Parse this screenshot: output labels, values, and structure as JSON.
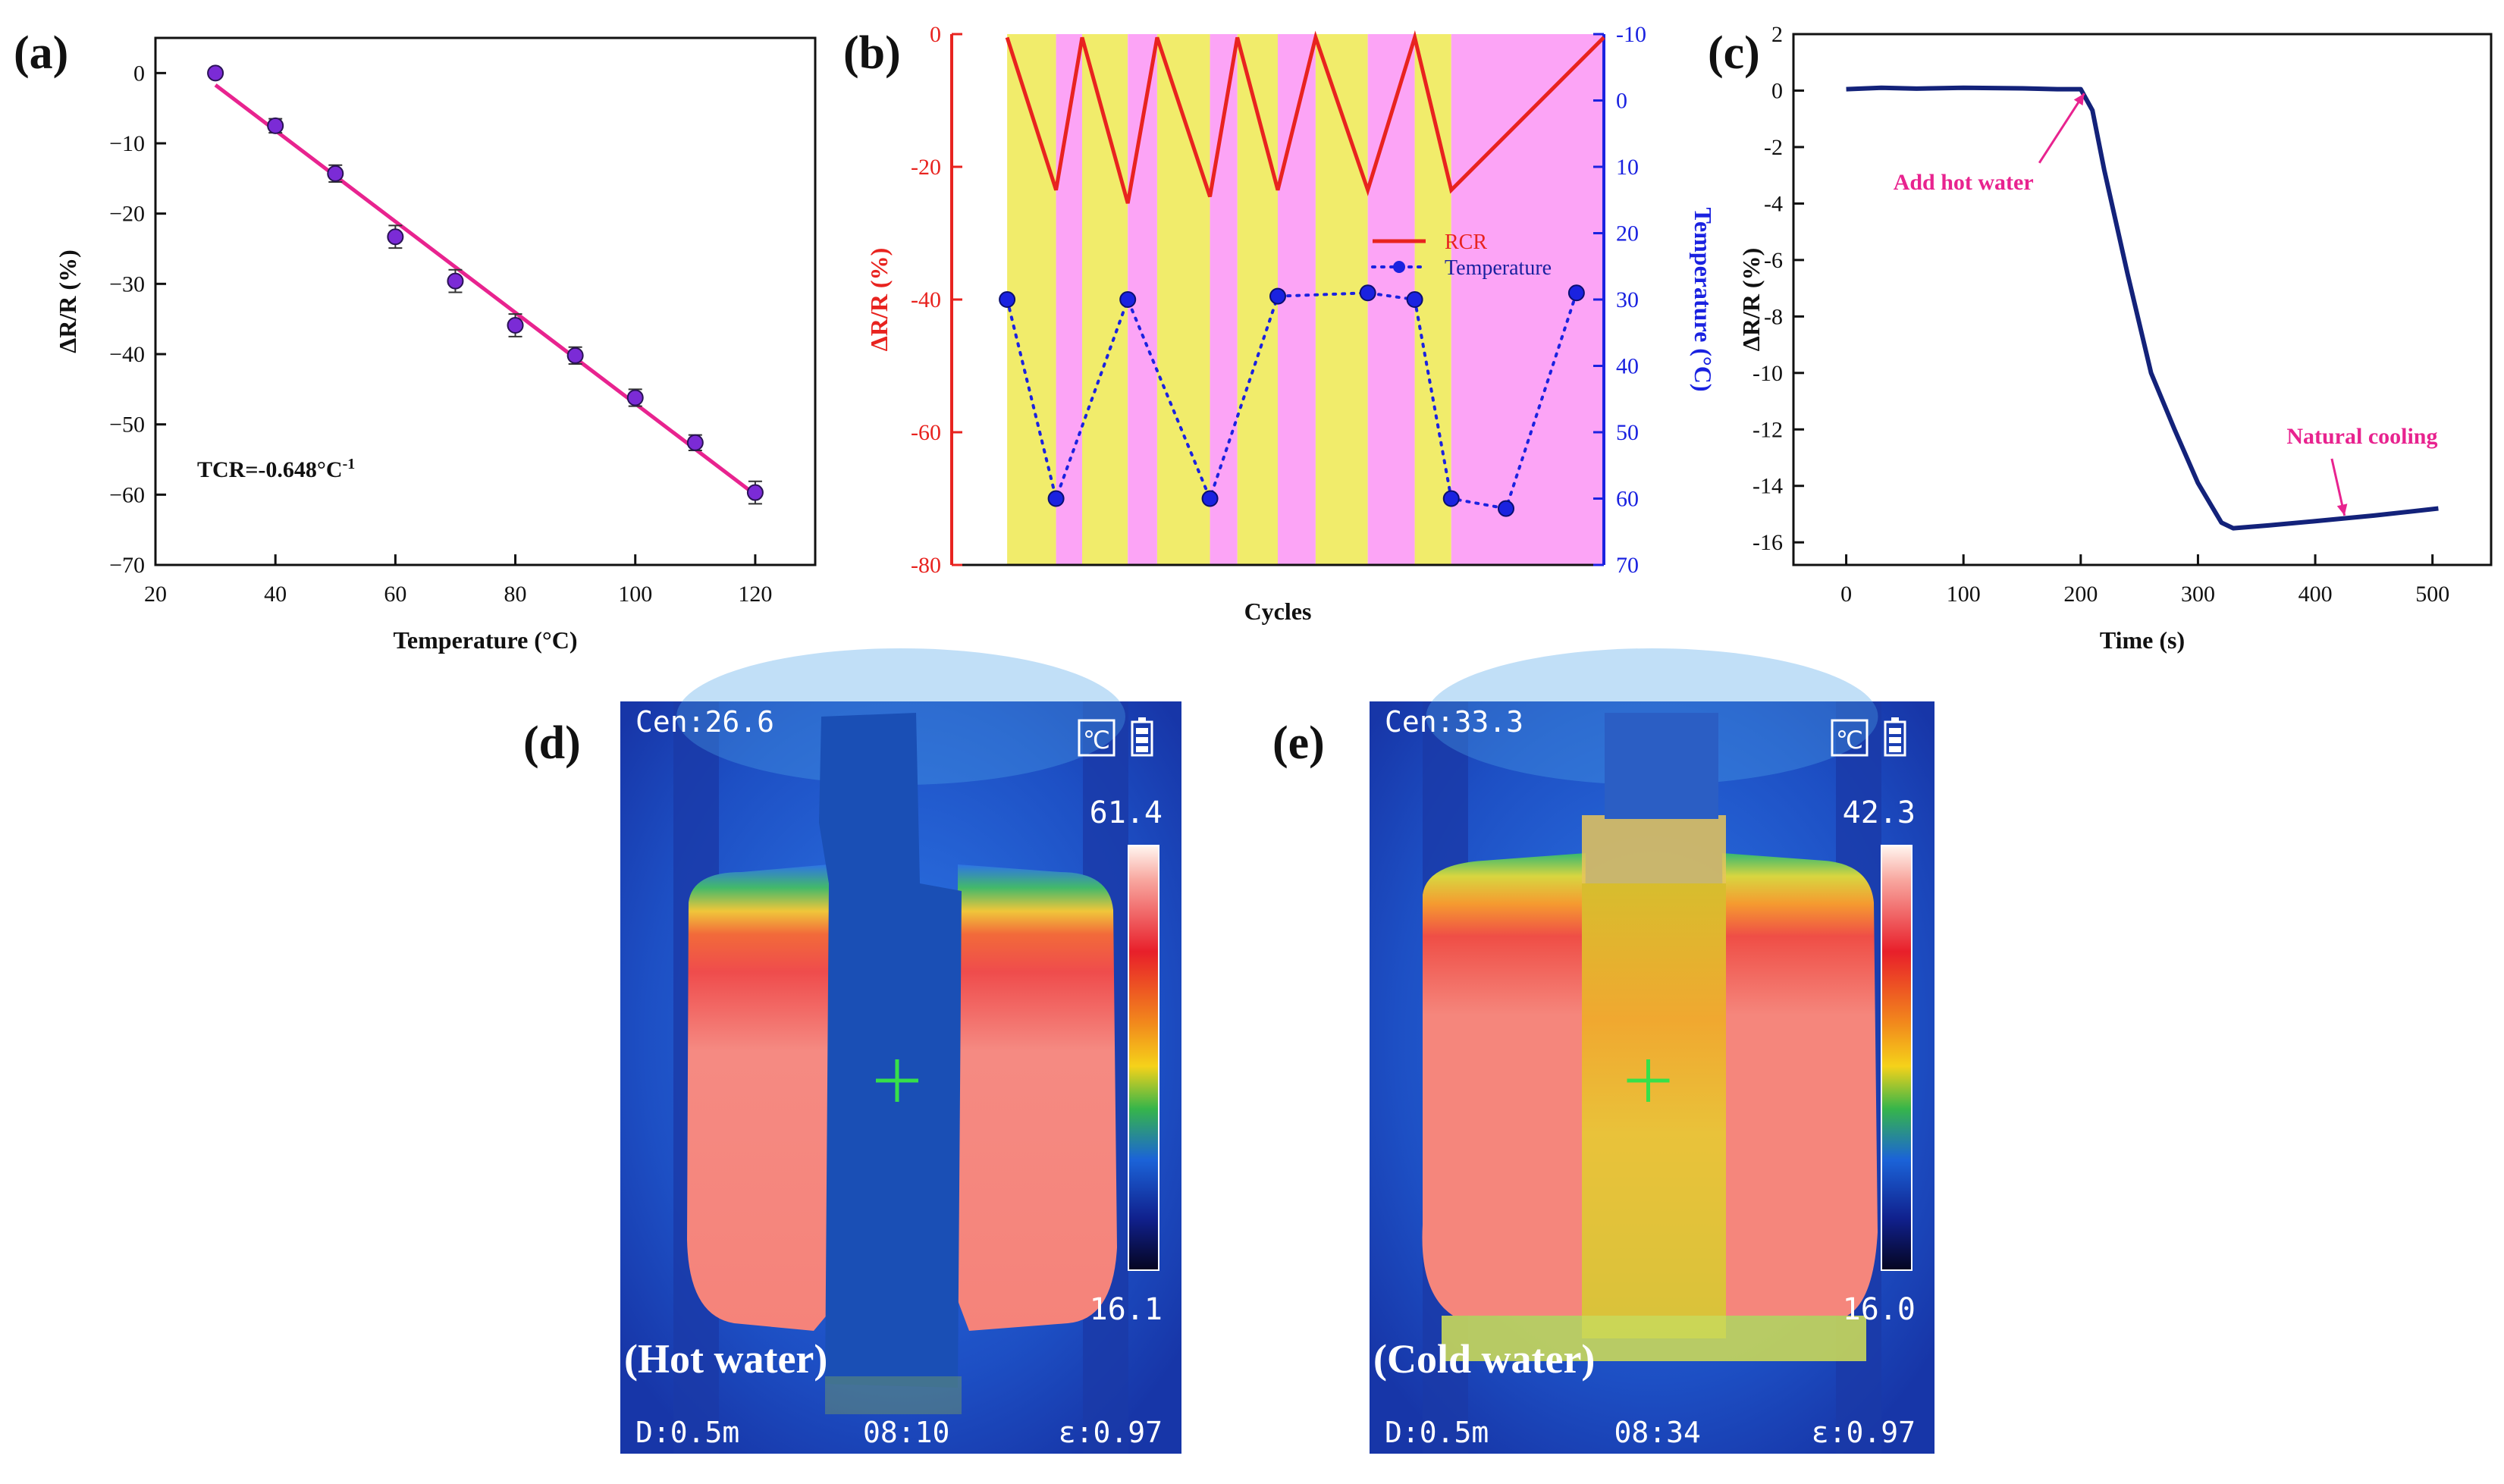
{
  "panels": {
    "a": "(a)",
    "b": "(b)",
    "c": "(c)",
    "d": "(d)",
    "e": "(e)"
  },
  "chart_data": [
    {
      "id": "a",
      "type": "scatter",
      "xlabel": "Temperature (°C)",
      "ylabel": "ΔR/R (%)",
      "xlim": [
        20,
        130
      ],
      "ylim": [
        -70,
        5
      ],
      "xticks": [
        20,
        40,
        60,
        80,
        100,
        120
      ],
      "yticks": [
        0,
        -10,
        -20,
        -30,
        -40,
        -50,
        -60,
        -70
      ],
      "x": [
        30,
        40,
        50,
        60,
        70,
        80,
        90,
        100,
        110,
        120
      ],
      "y": [
        0,
        -7.5,
        -14.3,
        -23.3,
        -29.6,
        -35.9,
        -40.2,
        -46.2,
        -52.6,
        -59.7
      ],
      "err": [
        0.5,
        1.0,
        1.2,
        1.6,
        1.6,
        1.6,
        1.2,
        1.2,
        1.1,
        1.6
      ],
      "fit": {
        "x": [
          30,
          120
        ],
        "y": [
          -1.7,
          -60.0
        ]
      },
      "annotation": "TCR=-0.648°C",
      "annotation_sup": "-1",
      "colors": {
        "marker": "#7b2bd6",
        "fit": "#e8238f"
      }
    },
    {
      "id": "b",
      "type": "line",
      "xlabel": "Cycles",
      "ylabel": "ΔR/R (%)",
      "ylabel2": "Temperature (°C)",
      "ylim": [
        -80,
        0
      ],
      "yticks": [
        0,
        -20,
        -40,
        -60,
        -80
      ],
      "ylim2": [
        -10,
        70
      ],
      "yticks2": [
        -10,
        0,
        10,
        20,
        30,
        40,
        50,
        60,
        70
      ],
      "xlim": [
        0,
        1
      ],
      "band_edges": [
        0.085,
        0.16,
        0.2,
        0.27,
        0.315,
        0.396,
        0.438,
        0.5,
        0.558,
        0.638,
        0.71,
        0.766,
        1
      ],
      "band_colors": [
        "#ffffff",
        "#f1ec6b",
        "#fca4f6"
      ],
      "series": [
        {
          "name": "RCR",
          "x": [
            0.085,
            0.16,
            0.2,
            0.27,
            0.315,
            0.396,
            0.438,
            0.5,
            0.558,
            0.638,
            0.71,
            0.766,
            1
          ],
          "values": [
            -0.5,
            -23.5,
            -0.5,
            -25.5,
            -0.5,
            -24.5,
            -0.5,
            -23.5,
            -0.5,
            -23.5,
            -0.5,
            -23.5,
            -0.5
          ],
          "color": "#e8231f"
        },
        {
          "name": "Temperature",
          "x": [
            0.085,
            0.16,
            0.27,
            0.396,
            0.5,
            0.638,
            0.71,
            0.766,
            0.85,
            0.958
          ],
          "values": [
            30,
            60,
            30,
            60,
            29.5,
            29,
            30,
            60,
            61.5,
            29
          ],
          "color": "#1a22e0"
        }
      ],
      "legend": [
        "RCR",
        "Temperature"
      ],
      "colors": {
        "left_axis": "#e8231f",
        "right_axis": "#1a22e0"
      }
    },
    {
      "id": "c",
      "type": "line",
      "xlabel": "Time (s)",
      "ylabel": "ΔR/R (%)",
      "xlim": [
        -45,
        550
      ],
      "ylim": [
        -16.8,
        2
      ],
      "xticks": [
        0,
        100,
        200,
        300,
        400,
        500
      ],
      "yticks": [
        2,
        0,
        -2,
        -4,
        -6,
        -8,
        -10,
        -12,
        -14,
        -16
      ],
      "x": [
        0,
        30,
        60,
        100,
        150,
        180,
        200,
        210,
        220,
        240,
        260,
        280,
        300,
        320,
        330,
        360,
        400,
        450,
        505
      ],
      "y": [
        0.05,
        0.1,
        0.07,
        0.1,
        0.08,
        0.05,
        0.05,
        -0.7,
        -2.8,
        -6.5,
        -10.0,
        -12.0,
        -13.9,
        -15.3,
        -15.5,
        -15.4,
        -15.25,
        -15.05,
        -14.8
      ],
      "annotations": [
        {
          "text": "Add hot water",
          "x": 203,
          "y": -0.1,
          "text_x": 100,
          "text_y": -3.5
        },
        {
          "text": "Natural cooling",
          "x": 425,
          "y": -15.05,
          "text_x": 440,
          "text_y": -12.5
        }
      ],
      "colors": {
        "line": "#13227a",
        "annotation": "#e8238f"
      }
    }
  ],
  "thermal": [
    {
      "id": "d",
      "cen": "Cen:26.6",
      "max": "61.4",
      "min": "16.1",
      "label": "(Hot water)",
      "dist": "D:0.5m",
      "time": "08:10",
      "emis": "ε:0.97",
      "unit": "℃"
    },
    {
      "id": "e",
      "cen": "Cen:33.3",
      "max": "42.3",
      "min": "16.0",
      "label": "(Cold water)",
      "dist": "D:0.5m",
      "time": "08:34",
      "emis": "ε:0.97",
      "unit": "℃"
    }
  ]
}
